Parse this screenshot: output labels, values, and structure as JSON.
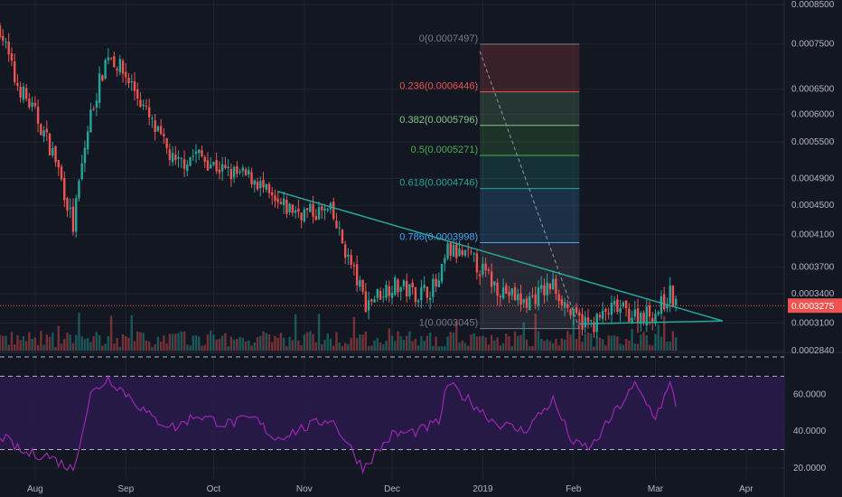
{
  "colors": {
    "background": "#131722",
    "grid": "#1f2431",
    "up": "#26a69a",
    "down": "#ef5350",
    "trendline": "#26a69a",
    "rsi": "#9c27b0",
    "rsi_band_fill": "#2a1a4a",
    "price_label_bg": "#ef5350",
    "current_line": "#ef5350",
    "axis_text": "#b2b5be",
    "fib_0": "#787b86",
    "fib_0236": "#ef5350",
    "fib_0382": "#81c784",
    "fib_05": "#4caf50",
    "fib_0618": "#26a69a",
    "fib_0786": "#42a5f5",
    "fib_1": "#787b86"
  },
  "chart_data": [
    {
      "type": "candlestick",
      "scale": "log",
      "ylim": [
        0.000284,
        0.00085
      ],
      "y_ticks": [
        "0.0008500",
        "0.0007500",
        "0.0006500",
        "0.0006000",
        "0.0005500",
        "0.0004900",
        "0.0004500",
        "0.0004100",
        "0.0003700",
        "0.0003400",
        "0.0003100",
        "0.0002840"
      ],
      "y_tick_values": [
        0.00085,
        0.00075,
        0.00065,
        0.0006,
        0.00055,
        0.00049,
        0.00045,
        0.00041,
        0.00037,
        0.00034,
        0.00031,
        0.000284
      ],
      "x_ticks": [
        "Aug",
        "Sep",
        "Oct",
        "Nov",
        "Dec",
        "2019",
        "Feb",
        "Mar",
        "Apr"
      ],
      "x_tick_dates": [
        "2018-08-01",
        "2018-09-01",
        "2018-10-01",
        "2018-11-01",
        "2018-12-01",
        "2019-01-01",
        "2019-02-01",
        "2019-03-01",
        "2019-04-01"
      ],
      "x_range": [
        "2018-07-20",
        "2019-04-14"
      ],
      "current_price": "0.0003275",
      "current_price_value": 0.0003275,
      "ohlc_key_points": [
        {
          "date": "2018-07-20",
          "close": 0.00079
        },
        {
          "date": "2018-07-25",
          "close": 0.00067
        },
        {
          "date": "2018-08-01",
          "close": 0.0006
        },
        {
          "date": "2018-08-08",
          "close": 0.00052
        },
        {
          "date": "2018-08-14",
          "close": 0.00042
        },
        {
          "date": "2018-08-20",
          "close": 0.0006
        },
        {
          "date": "2018-08-26",
          "close": 0.00073
        },
        {
          "date": "2018-09-03",
          "close": 0.00066
        },
        {
          "date": "2018-09-10",
          "close": 0.00058
        },
        {
          "date": "2018-09-18",
          "close": 0.00051
        },
        {
          "date": "2018-09-25",
          "close": 0.00053
        },
        {
          "date": "2018-10-05",
          "close": 0.0005
        },
        {
          "date": "2018-10-15",
          "close": 0.00049
        },
        {
          "date": "2018-10-22",
          "close": 0.00045
        },
        {
          "date": "2018-11-01",
          "close": 0.00044
        },
        {
          "date": "2018-11-10",
          "close": 0.00044
        },
        {
          "date": "2018-11-16",
          "close": 0.00038
        },
        {
          "date": "2018-11-22",
          "close": 0.00033
        },
        {
          "date": "2018-12-01",
          "close": 0.00035
        },
        {
          "date": "2018-12-10",
          "close": 0.00034
        },
        {
          "date": "2018-12-17",
          "close": 0.00035
        },
        {
          "date": "2018-12-20",
          "close": 0.00039
        },
        {
          "date": "2018-12-28",
          "close": 0.00038
        },
        {
          "date": "2019-01-05",
          "close": 0.00035
        },
        {
          "date": "2019-01-15",
          "close": 0.00033
        },
        {
          "date": "2019-01-25",
          "close": 0.00035
        },
        {
          "date": "2019-02-01",
          "close": 0.000315
        },
        {
          "date": "2019-02-07",
          "close": 0.000308
        },
        {
          "date": "2019-02-15",
          "close": 0.000325
        },
        {
          "date": "2019-02-22",
          "close": 0.000318
        },
        {
          "date": "2019-03-01",
          "close": 0.00032
        },
        {
          "date": "2019-03-06",
          "close": 0.00034
        },
        {
          "date": "2019-03-08",
          "close": 0.0003275
        }
      ],
      "trendline": {
        "start": {
          "date": "2018-10-23",
          "price": 0.00047
        },
        "end": {
          "date": "2019-03-24",
          "price": 0.000312
        }
      },
      "support_line": {
        "start": {
          "date": "2019-02-03",
          "price": 0.000309
        },
        "end": {
          "date": "2019-03-24",
          "price": 0.000312
        }
      },
      "fibonacci": {
        "start_date": "2018-12-31",
        "end_date": "2019-02-03",
        "levels": [
          {
            "label": "0(0.0007497)",
            "price": 0.0007497,
            "color_key": "fib_0"
          },
          {
            "label": "0.236(0.0006446)",
            "price": 0.0006446,
            "color_key": "fib_0236"
          },
          {
            "label": "0.382(0.0005796)",
            "price": 0.0005796,
            "color_key": "fib_0382"
          },
          {
            "label": "0.5(0.0005271)",
            "price": 0.0005271,
            "color_key": "fib_05"
          },
          {
            "label": "0.618(0.0004746)",
            "price": 0.0004746,
            "color_key": "fib_0618"
          },
          {
            "label": "0.786(0.0003998)",
            "price": 0.0003998,
            "color_key": "fib_0786"
          },
          {
            "label": "1(0.0003045)",
            "price": 0.0003045,
            "color_key": "fib_1"
          }
        ]
      },
      "grid": true
    },
    {
      "type": "line",
      "name": "",
      "ylim": [
        14,
        82
      ],
      "y_ticks": [
        "60.0000",
        "40.0000",
        "20.0000"
      ],
      "y_tick_values": [
        60,
        40,
        20
      ],
      "band": [
        30,
        70
      ],
      "key_points": [
        {
          "date": "2018-07-20",
          "value": 38
        },
        {
          "date": "2018-07-28",
          "value": 28
        },
        {
          "date": "2018-08-05",
          "value": 27
        },
        {
          "date": "2018-08-14",
          "value": 19
        },
        {
          "date": "2018-08-20",
          "value": 60
        },
        {
          "date": "2018-08-26",
          "value": 69
        },
        {
          "date": "2018-09-03",
          "value": 58
        },
        {
          "date": "2018-09-10",
          "value": 47
        },
        {
          "date": "2018-09-18",
          "value": 42
        },
        {
          "date": "2018-09-25",
          "value": 49
        },
        {
          "date": "2018-10-05",
          "value": 44
        },
        {
          "date": "2018-10-15",
          "value": 47
        },
        {
          "date": "2018-10-22",
          "value": 36
        },
        {
          "date": "2018-11-01",
          "value": 42
        },
        {
          "date": "2018-11-10",
          "value": 47
        },
        {
          "date": "2018-11-16",
          "value": 33
        },
        {
          "date": "2018-11-21",
          "value": 20
        },
        {
          "date": "2018-12-01",
          "value": 38
        },
        {
          "date": "2018-12-10",
          "value": 40
        },
        {
          "date": "2018-12-17",
          "value": 45
        },
        {
          "date": "2018-12-20",
          "value": 66
        },
        {
          "date": "2018-12-28",
          "value": 56
        },
        {
          "date": "2019-01-05",
          "value": 45
        },
        {
          "date": "2019-01-15",
          "value": 40
        },
        {
          "date": "2019-01-25",
          "value": 57
        },
        {
          "date": "2019-02-01",
          "value": 33
        },
        {
          "date": "2019-02-07",
          "value": 31
        },
        {
          "date": "2019-02-15",
          "value": 50
        },
        {
          "date": "2019-02-22",
          "value": 65
        },
        {
          "date": "2019-03-01",
          "value": 48
        },
        {
          "date": "2019-03-06",
          "value": 65
        },
        {
          "date": "2019-03-08",
          "value": 55
        }
      ],
      "grid": true
    }
  ]
}
